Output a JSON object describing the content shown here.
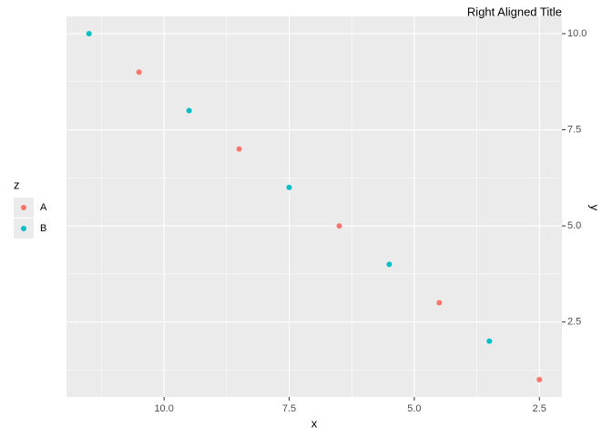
{
  "chart_data": {
    "type": "scatter",
    "title": "Right Aligned Title",
    "x_label": "x",
    "y_label": "y",
    "legend_title": "z",
    "y_axis_position": "right",
    "legend_position": "left",
    "grid": true,
    "xlim": [
      11.95,
      2.05
    ],
    "ylim": [
      0.55,
      10.45
    ],
    "xticks": [
      {
        "value": 10,
        "label": "10.0"
      },
      {
        "value": 7.5,
        "label": "7.5"
      },
      {
        "value": 5,
        "label": "5.0"
      },
      {
        "value": 2.5,
        "label": "2.5"
      }
    ],
    "yticks": [
      {
        "value": 2.5,
        "label": "2.5"
      },
      {
        "value": 5,
        "label": "5.0"
      },
      {
        "value": 7.5,
        "label": "7.5"
      },
      {
        "value": 10,
        "label": "10.0"
      }
    ],
    "series": [
      {
        "name": "A",
        "color": "#F8766D",
        "x": [
          10.5,
          8.5,
          6.5,
          4.5,
          2.5
        ],
        "values": [
          9,
          7,
          5,
          3,
          1
        ]
      },
      {
        "name": "B",
        "color": "#00BFC4",
        "x": [
          11.5,
          9.5,
          7.5,
          5.5,
          3.5
        ],
        "values": [
          10,
          8,
          6,
          4,
          2
        ]
      }
    ]
  }
}
